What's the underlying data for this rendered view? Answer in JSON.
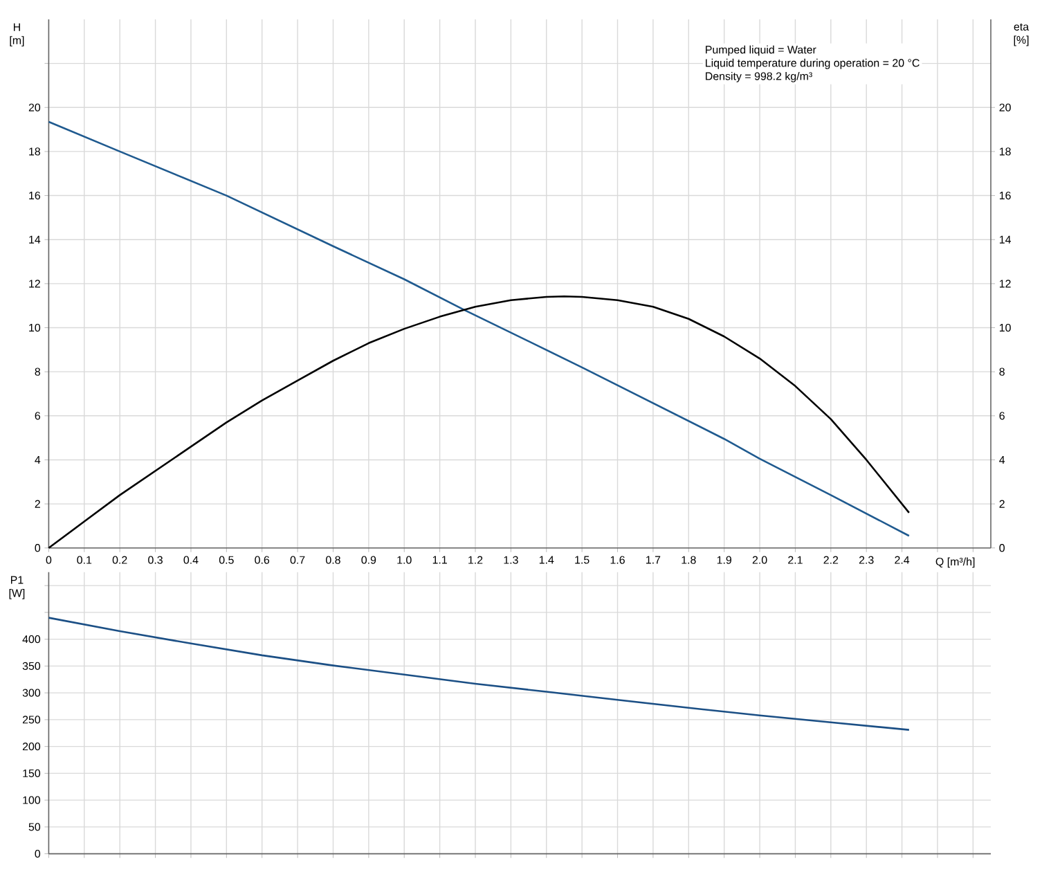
{
  "chart_data": [
    {
      "type": "line",
      "xlabel": "Q [m³/h]",
      "ylabel": "H [m]",
      "y2label": "eta [%]",
      "annotations": [
        "Pumped liquid = Water",
        "Liquid temperature during operation = 20 °C",
        "Density = 998.2 kg/m³"
      ],
      "xlim": [
        0,
        2.65
      ],
      "xticks": [
        0,
        0.1,
        0.2,
        0.3,
        0.4,
        0.5,
        0.6,
        0.7,
        0.8,
        0.9,
        {
          "value": 1,
          "label": "1.0"
        },
        1.1,
        1.2,
        1.3,
        1.4,
        1.5,
        1.6,
        1.7,
        1.8,
        1.9,
        {
          "value": 2,
          "label": "2.0"
        },
        2.1,
        2.2,
        2.3,
        2.4,
        {
          "value": 2.5,
          "label": null
        },
        {
          "value": 2.6,
          "label": null
        }
      ],
      "ylim": [
        0,
        24
      ],
      "yticks": [
        0,
        2,
        4,
        6,
        8,
        10,
        12,
        14,
        16,
        18,
        20,
        {
          "value": 22,
          "label": null
        }
      ],
      "y2lim": [
        0,
        24
      ],
      "y2ticks": [
        0,
        2,
        4,
        6,
        8,
        10,
        12,
        14,
        16,
        18,
        20
      ],
      "grid": true,
      "series": [
        {
          "color": "#1f5a8f",
          "x": [
            0,
            0.2,
            0.5,
            0.8,
            1.0,
            1.17,
            1.5,
            1.9,
            2.0,
            2.2,
            2.42
          ],
          "values": [
            19.35,
            18.0,
            16.0,
            13.7,
            12.2,
            10.8,
            8.2,
            4.95,
            4.05,
            2.4,
            0.55
          ]
        },
        {
          "color": "#000000",
          "axis": "y2",
          "x": [
            0,
            0.1,
            0.2,
            0.3,
            0.4,
            0.5,
            0.6,
            0.7,
            0.8,
            0.9,
            1.0,
            1.1,
            1.2,
            1.3,
            1.4,
            1.45,
            1.5,
            1.6,
            1.7,
            1.8,
            1.9,
            2.0,
            2.1,
            2.2,
            2.3,
            2.42
          ],
          "values": [
            0,
            1.2,
            2.4,
            3.5,
            4.6,
            5.7,
            6.7,
            7.6,
            8.5,
            9.3,
            9.95,
            10.5,
            10.95,
            11.25,
            11.4,
            11.42,
            11.4,
            11.25,
            10.95,
            10.4,
            9.6,
            8.6,
            7.35,
            5.85,
            4.0,
            1.6
          ]
        }
      ]
    },
    {
      "type": "line",
      "ylabel": "P1 [W]",
      "xlim": [
        0,
        2.65
      ],
      "ylim": [
        0,
        525
      ],
      "yticks": [
        0,
        50,
        100,
        150,
        200,
        250,
        300,
        350,
        400,
        {
          "value": 450,
          "label": null
        },
        {
          "value": 500,
          "label": null
        }
      ],
      "xticks": [
        0,
        0.1,
        0.2,
        0.3,
        0.4,
        0.5,
        0.6,
        0.7,
        0.8,
        0.9,
        1,
        1.1,
        1.2,
        1.3,
        1.4,
        1.5,
        1.6,
        1.7,
        1.8,
        1.9,
        2,
        2.1,
        2.2,
        2.3,
        2.4,
        2.5,
        2.6
      ],
      "tick_labels": "y",
      "grid": true,
      "series": [
        {
          "color": "#1b4f85",
          "x": [
            0,
            0.2,
            0.4,
            0.6,
            0.8,
            1.0,
            1.2,
            1.4,
            1.6,
            1.8,
            2.0,
            2.2,
            2.42
          ],
          "values": [
            440,
            415,
            392,
            370,
            351,
            334,
            317,
            302,
            287,
            272,
            258,
            245,
            231
          ]
        }
      ]
    }
  ]
}
